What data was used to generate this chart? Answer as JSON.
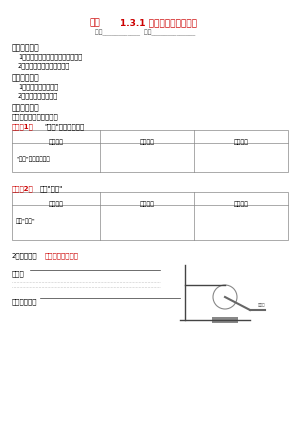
{
  "title_label": "课题",
  "title_text": "1.3.1 怎样学习和研究化学",
  "subtitle": "班级____________  姓名______________",
  "section1_header": "【学习目标】",
  "section1_items": [
    "1．初步学会化学实验中的基本操作",
    "2．初步了解实验现象的描述"
  ],
  "section2_header": "【学习重点】",
  "section2_items": [
    "1．化学实验基本操作",
    "2．仔细描述实验现象"
  ],
  "section3_header": "【教学过程】",
  "section3_sub": "一、学习交流、分组实验",
  "exp1_header": "【实验1】",
  "exp1_title": "\"酒精\"和比喻的使用",
  "table1_cols": [
    "实验内容",
    "实验现象",
    "实验结论"
  ],
  "table1_row1": [
    "\"酒精\"和比喻的使用",
    "",
    ""
  ],
  "exp2_header": "【实验2】",
  "exp2_title": "加热\"铜绿\"",
  "table2_cols": [
    "实验内容",
    "实验现象",
    "实验结论"
  ],
  "table2_row1": [
    "加热\"铜绿\"",
    "",
    ""
  ],
  "section4_sub": "2．演示实验",
  "section4_bracket": "【酒精灯的使用】",
  "obs_label": "现象：",
  "dots_line": "...............................................",
  "wz_label": "文字表达式：",
  "bg_color": "#ffffff",
  "text_color": "#000000",
  "title_color": "#cc0000",
  "header_color": "#cc0000",
  "table_border_color": "#888888",
  "light_gray": "#cccccc"
}
